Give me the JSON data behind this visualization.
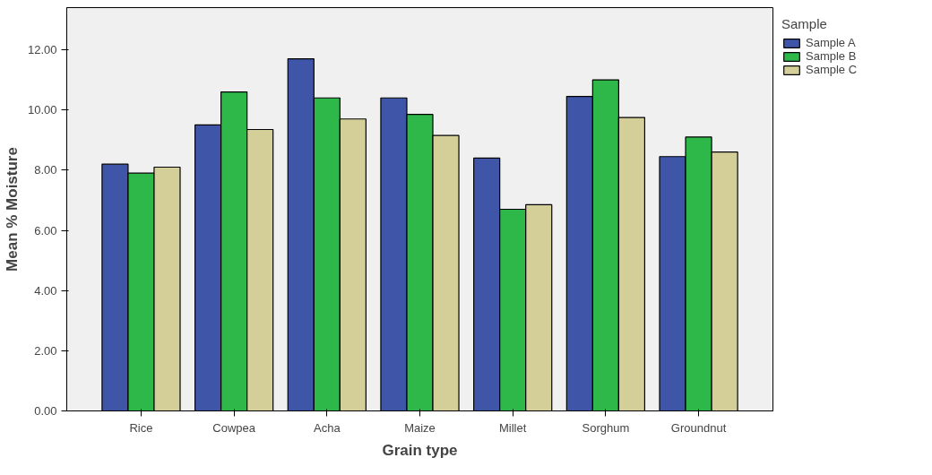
{
  "chart_data": {
    "type": "bar",
    "xlabel": "Grain type",
    "ylabel": "Mean % Moisture",
    "legend_title": "Sample",
    "legend": "top right",
    "categories": [
      "Rice",
      "Cowpea",
      "Acha",
      "Maize",
      "Millet",
      "Sorghum",
      "Groundnut"
    ],
    "series": [
      {
        "name": "Sample A",
        "color": "#3f56a8",
        "values": [
          8.2,
          9.5,
          11.7,
          10.4,
          8.4,
          10.45,
          8.45
        ]
      },
      {
        "name": "Sample B",
        "color": "#2eb84a",
        "values": [
          7.9,
          10.6,
          10.4,
          9.85,
          6.7,
          11.0,
          9.1
        ]
      },
      {
        "name": "Sample C",
        "color": "#d4cf99",
        "values": [
          8.1,
          9.35,
          9.7,
          9.15,
          6.85,
          9.75,
          8.6
        ]
      }
    ],
    "ylim": [
      0,
      13.4
    ],
    "yticks": [
      {
        "value": 0,
        "label": "0.00"
      },
      {
        "value": 2,
        "label": "2.00"
      },
      {
        "value": 4,
        "label": "4.00"
      },
      {
        "value": 6,
        "label": "6.00"
      },
      {
        "value": 8,
        "label": "8.00"
      },
      {
        "value": 10,
        "label": "10.00"
      },
      {
        "value": 12,
        "label": "12.00"
      }
    ],
    "grid": false
  }
}
